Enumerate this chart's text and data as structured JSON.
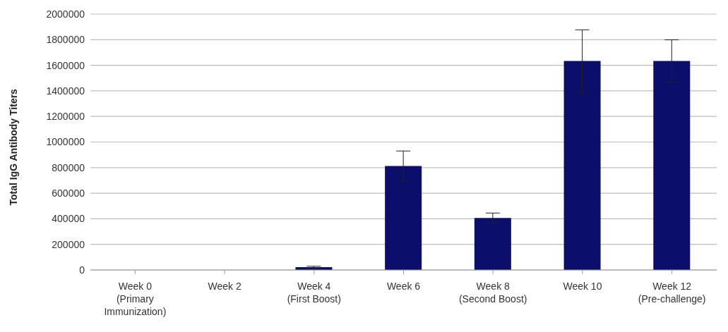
{
  "chart_data": {
    "type": "bar",
    "ylabel": "Total IgG Antibody Titers",
    "categories": [
      "Week 0\n(Primary\nImmunization)",
      "Week 2",
      "Week 4\n(First Boost)",
      "Week 6",
      "Week 8\n(Second Boost)",
      "Week 10",
      "Week 12\n(Pre-challenge)"
    ],
    "values": [
      0,
      0,
      22000,
      812000,
      406000,
      1633000,
      1633000
    ],
    "errors": [
      null,
      null,
      7000,
      118000,
      39000,
      244000,
      166000
    ],
    "color": "#0b0f6b",
    "ylim": [
      0,
      2000000
    ],
    "yticks": [
      0,
      200000,
      400000,
      600000,
      800000,
      1000000,
      1200000,
      1400000,
      1600000,
      1800000,
      2000000
    ],
    "grid": "y"
  }
}
